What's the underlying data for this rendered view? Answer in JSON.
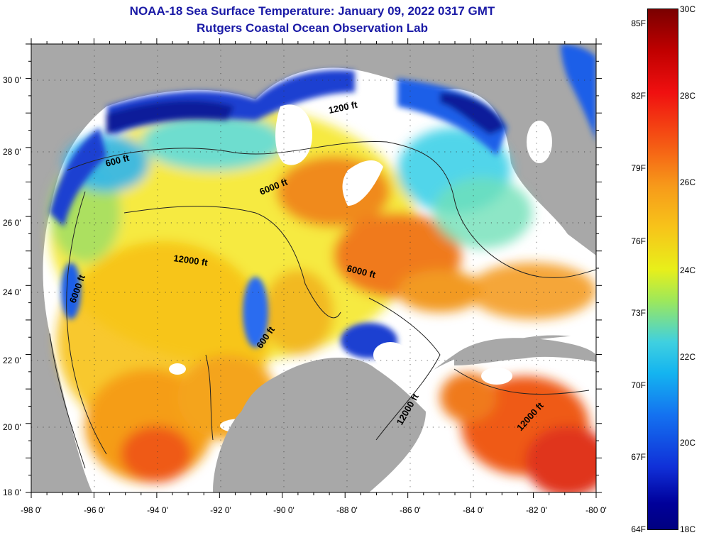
{
  "header": {
    "title_line1": "NOAA-18 Sea Surface Temperature:  January 09, 2022 0317 GMT",
    "title_line2": "Rutgers Coastal Ocean Observation Lab"
  },
  "map": {
    "region": "Gulf of Mexico",
    "lat_ticks": [
      "30 0'",
      "28 0'",
      "26 0'",
      "24 0'",
      "22 0'",
      "20 0'",
      "18 0'"
    ],
    "lon_ticks": [
      "-98 0'",
      "-96 0'",
      "-94 0'",
      "-92 0'",
      "-90 0'",
      "-88 0'",
      "-86 0'",
      "-84 0'",
      "-82 0'",
      "-80 0'"
    ],
    "contour_labels": [
      "600 ft",
      "6000 ft",
      "1200 ft",
      "12000 ft",
      "6000 ft",
      "6000 ft",
      "600 ft",
      "12000 ft",
      "12000 ft"
    ],
    "colors": {
      "land": "#a8a8a8",
      "cloud": "#ffffff",
      "cold": "#00008a",
      "warm": "#8b0000"
    }
  },
  "colorbar": {
    "fahrenheit": [
      "85F",
      "82F",
      "79F",
      "76F",
      "73F",
      "70F",
      "67F",
      "64F"
    ],
    "celsius": [
      "30C",
      "28C",
      "26C",
      "24C",
      "22C",
      "20C",
      "18C"
    ]
  }
}
